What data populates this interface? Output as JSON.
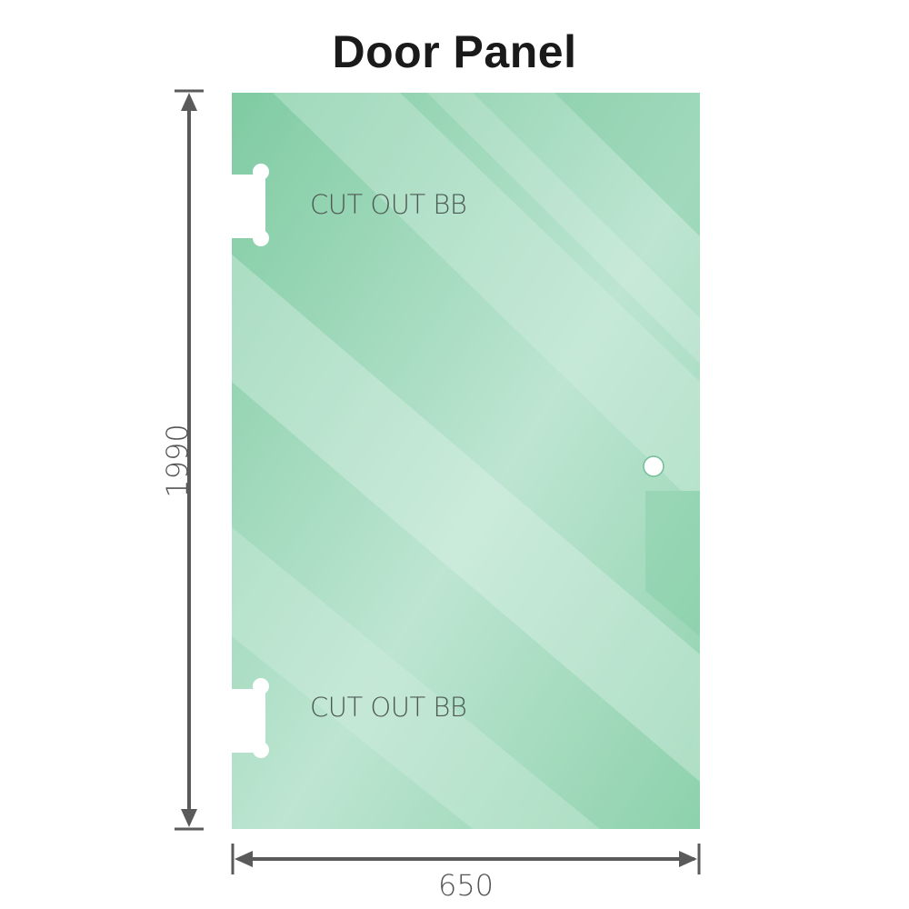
{
  "title": "Door Panel",
  "cutouts": [
    {
      "label": "CUT OUT BB"
    },
    {
      "label": "CUT OUT BB"
    }
  ],
  "dimensions": {
    "height": "1990",
    "width": "650"
  },
  "colors": {
    "glass": "#86cfa8",
    "glass_light": "#bfe6d3",
    "dimension_line": "#5a5a5a"
  }
}
